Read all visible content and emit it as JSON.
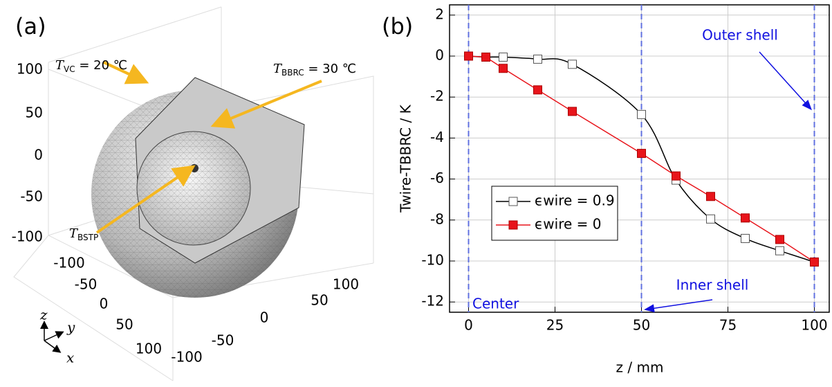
{
  "panel_a": {
    "label": "(a)",
    "z_ticks": [
      "100",
      "50",
      "0",
      "-50",
      "-100"
    ],
    "y_ticks": [
      "-100",
      "-50",
      "0",
      "50",
      "100"
    ],
    "x_ticks": [
      "100",
      "50",
      "0",
      "-50",
      "-100"
    ],
    "axis_labels": {
      "z": "z",
      "y": "y",
      "x": "x"
    },
    "annotations": [
      {
        "symbol": "T",
        "subscript": "VC",
        "text": " = 20 ℃"
      },
      {
        "symbol": "T",
        "subscript": "BBRC",
        "text": " = 30 ℃"
      },
      {
        "symbol": "T",
        "subscript": "BSTP"
      }
    ]
  },
  "chart_data": {
    "type": "line",
    "label": "(b)",
    "x_label": "z / mm",
    "y_label": "Twire-TBBRC / K",
    "xlim": [
      -5.5,
      104.5
    ],
    "ylim": [
      -12.5,
      2.5
    ],
    "xticks": [
      0,
      25,
      50,
      75,
      100
    ],
    "yticks": [
      2,
      0,
      -2,
      -4,
      -6,
      -8,
      -10,
      -12
    ],
    "grid": true,
    "legend": "center left",
    "x": [
      0,
      5,
      10,
      20,
      30,
      50,
      60,
      70,
      80,
      90,
      100
    ],
    "series": [
      {
        "name": "ϵwire = 0.9",
        "color": "#000000",
        "marker": "open-square",
        "smooth": true,
        "values": [
          0,
          -0.05,
          -0.05,
          -0.15,
          -0.4,
          -2.85,
          -6.05,
          -7.95,
          -8.9,
          -9.5,
          -10.05
        ]
      },
      {
        "name": "ϵwire = 0",
        "color": "#e8141b",
        "marker": "filled-square",
        "smooth": false,
        "values": [
          0,
          -0.05,
          -0.6,
          -1.65,
          -2.7,
          -4.75,
          -5.85,
          -6.85,
          -7.9,
          -8.95,
          -10.05
        ]
      }
    ],
    "vlines": {
      "values": [
        0,
        50,
        100
      ],
      "color": "#6070e0"
    },
    "annotations": [
      "Outer shell",
      "Inner shell",
      "Center"
    ],
    "annotation_color": "#1010e0"
  }
}
